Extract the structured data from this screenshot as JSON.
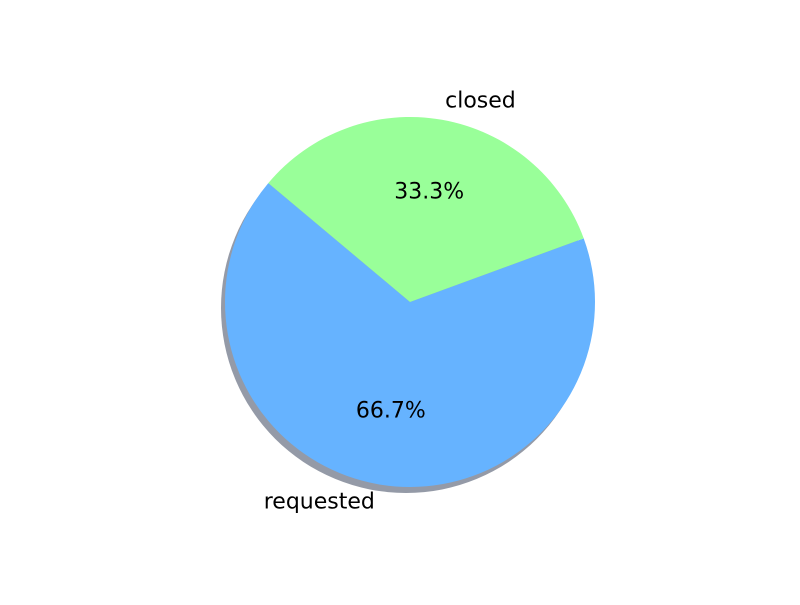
{
  "chart_data": {
    "type": "pie",
    "title": "",
    "categories": [
      "requested",
      "closed"
    ],
    "values": [
      66.7,
      33.3
    ],
    "percent_labels": [
      "66.7%",
      "33.3%"
    ],
    "colors": [
      "#66b3ff",
      "#99ff99"
    ],
    "shadow": true,
    "legend": "none",
    "start_angle_deg": 140,
    "direction": "counterclockwise"
  }
}
